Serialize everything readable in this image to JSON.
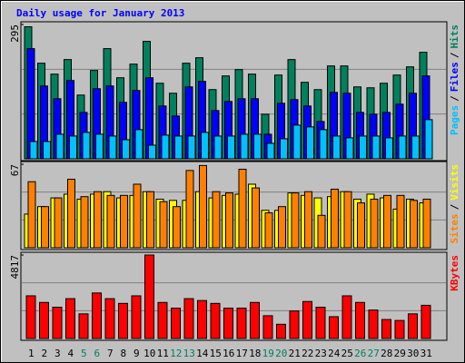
{
  "chart_data": [
    {
      "type": "bar",
      "title": "Daily usage for January 2013",
      "separator": "/",
      "ylim": [
        0,
        295
      ],
      "yticks": [
        295
      ],
      "series": [
        {
          "name": "Hits",
          "color": "#00805c",
          "values": [
            290,
            210,
            186,
            218,
            140,
            194,
            242,
            178,
            208,
            258,
            166,
            144,
            210,
            222,
            152,
            182,
            196,
            186,
            98,
            184,
            218,
            168,
            152,
            204,
            204,
            158,
            156,
            166,
            184,
            202,
            234
          ]
        },
        {
          "name": "Files",
          "color": "#0000ff",
          "values": [
            242,
            160,
            132,
            172,
            102,
            154,
            160,
            124,
            150,
            178,
            116,
            94,
            158,
            170,
            106,
            126,
            132,
            132,
            54,
            122,
            130,
            116,
            82,
            146,
            144,
            102,
            98,
            102,
            120,
            144,
            182
          ]
        },
        {
          "name": "Pages",
          "color": "#00c0ff",
          "values": [
            38,
            38,
            54,
            50,
            58,
            54,
            50,
            42,
            64,
            30,
            52,
            50,
            50,
            58,
            50,
            50,
            54,
            54,
            34,
            44,
            74,
            70,
            64,
            50,
            46,
            50,
            50,
            46,
            50,
            50,
            86
          ]
        }
      ]
    },
    {
      "type": "bar",
      "separator": "/",
      "ylim": [
        0,
        67
      ],
      "yticks": [
        67
      ],
      "series": [
        {
          "name": "Visits",
          "color": "#ffff00",
          "values": [
            27,
            33,
            40,
            43,
            39,
            43,
            45,
            40,
            42,
            45,
            39,
            38,
            38,
            45,
            40,
            42,
            43,
            51,
            30,
            30,
            44,
            42,
            40,
            41,
            45,
            39,
            43,
            40,
            31,
            39,
            36
          ]
        },
        {
          "name": "Sites",
          "color": "#ff8000",
          "values": [
            53,
            33,
            40,
            55,
            41,
            45,
            42,
            42,
            51,
            45,
            37,
            33,
            62,
            66,
            45,
            44,
            63,
            48,
            28,
            33,
            44,
            45,
            26,
            47,
            45,
            36,
            39,
            42,
            42,
            38,
            39
          ]
        }
      ]
    },
    {
      "type": "bar",
      "ylim": [
        0,
        4817
      ],
      "yticks": [
        4817
      ],
      "series": [
        {
          "name": "KBytes",
          "color": "#ff0000",
          "values": [
            2463,
            2080,
            1806,
            2299,
            1423,
            2627,
            2299,
            2025,
            2463,
            4817,
            2080,
            1752,
            2299,
            2190,
            2025,
            1752,
            1752,
            2080,
            1314,
            821,
            1587,
            2135,
            1806,
            1259,
            2463,
            2080,
            1642,
            1095,
            1040,
            1423,
            1916
          ]
        }
      ],
      "categories": [
        "1",
        "2",
        "3",
        "4",
        "5",
        "6",
        "7",
        "8",
        "9",
        "10",
        "11",
        "12",
        "13",
        "14",
        "15",
        "16",
        "17",
        "18",
        "19",
        "20",
        "21",
        "22",
        "23",
        "24",
        "25",
        "26",
        "27",
        "28",
        "29",
        "30",
        "31"
      ],
      "category_colors": [
        "#000000",
        "#000000",
        "#000000",
        "#000000",
        "#00805c",
        "#00805c",
        "#000000",
        "#000000",
        "#000000",
        "#000000",
        "#000000",
        "#00805c",
        "#00805c",
        "#000000",
        "#000000",
        "#000000",
        "#000000",
        "#000000",
        "#00805c",
        "#00805c",
        "#000000",
        "#000000",
        "#000000",
        "#000000",
        "#000000",
        "#00805c",
        "#00805c",
        "#000000",
        "#000000",
        "#000000",
        "#000000"
      ]
    }
  ]
}
